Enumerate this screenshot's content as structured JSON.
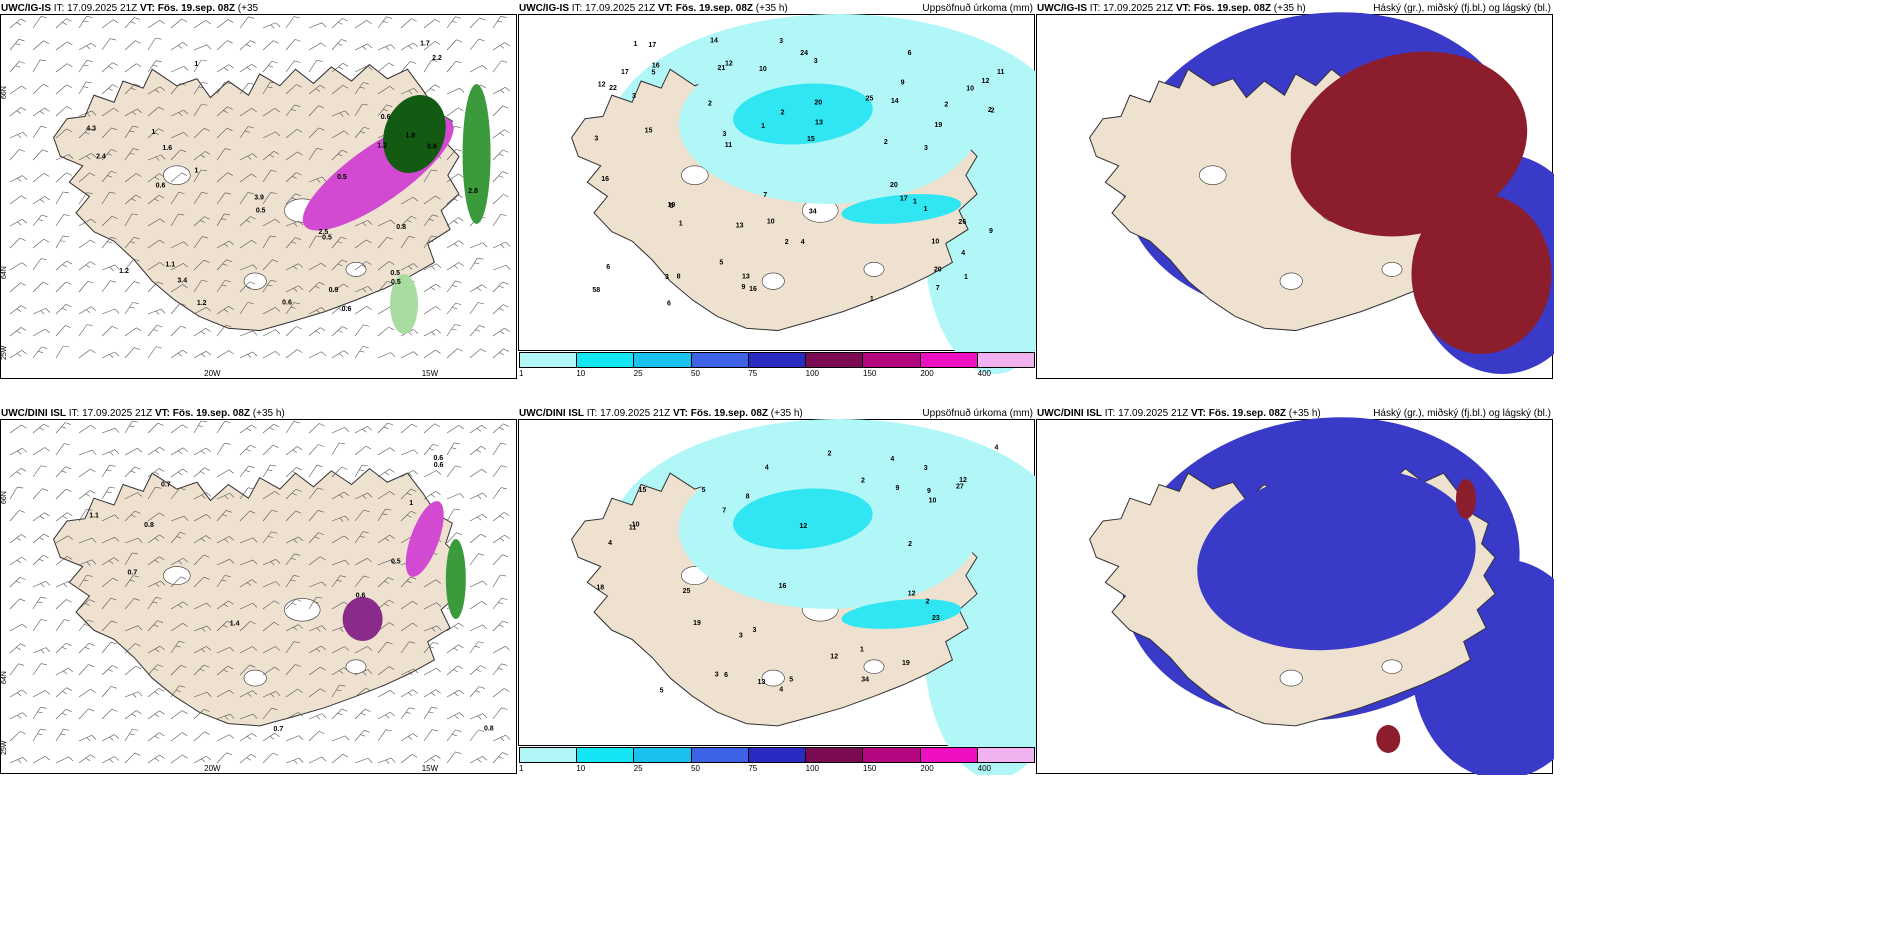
{
  "panels": [
    {
      "id": "p1",
      "header_model": "UWC/IG-IS",
      "header_it": " IT: 17.09.2025 21Z ",
      "header_vt": "VT: Fös. 19.sep. 08Z",
      "header_lead": " (+35",
      "header_wrap": "h)",
      "right_title": "",
      "type": "wind",
      "lon_labels": [
        "20W",
        "15W"
      ],
      "lat_labels": [
        "66N",
        "64N",
        "25W"
      ],
      "values": [
        "0.6",
        "1",
        "1.1",
        "1",
        "1.8",
        "0.9",
        "2.8",
        "1",
        "0.5",
        "3.4",
        "1.2",
        "4.3",
        "3.9",
        "2.5",
        "1.2",
        "1.7",
        "2.4",
        "2.2",
        "0.8",
        "0.8",
        "0.5",
        "0.5",
        "1.2",
        "0.5",
        "0.5",
        "0.6",
        "0.6",
        "1.6",
        "0.6"
      ]
    },
    {
      "id": "p2",
      "header_model": "UWC/IG-IS",
      "header_it": " IT: 17.09.2025 21Z ",
      "header_vt": "VT: Fös. 19.sep. 08Z",
      "header_lead": " (+35 h)",
      "right_title": "Uppsöfnuð úrkoma (mm)",
      "type": "precip",
      "values": [
        "12",
        "10",
        "5",
        "6",
        "3",
        "3",
        "2",
        "5",
        "11",
        "1",
        "13",
        "2",
        "22",
        "21",
        "20",
        "20",
        "13",
        "10",
        "12",
        "7",
        "34",
        "19",
        "17",
        "16",
        "14",
        "10",
        "9",
        "17",
        "8",
        "58",
        "15",
        "6",
        "16",
        "9",
        "7",
        "24",
        "16",
        "4",
        "10",
        "15",
        "9",
        "19",
        "13",
        "11",
        "3",
        "12",
        "20",
        "14",
        "25",
        "26",
        "17",
        "6",
        "5",
        "1",
        "1",
        "2",
        "2",
        "1",
        "3",
        "3",
        "2",
        "4",
        "2",
        "3",
        "1",
        "3",
        "2",
        "1",
        "1"
      ],
      "legend": [
        "1",
        "10",
        "25",
        "50",
        "75",
        "100",
        "150",
        "200",
        "400"
      ]
    },
    {
      "id": "p3",
      "header_model": "UWC/IG-IS",
      "header_it": " IT: 17.09.2025 21Z ",
      "header_vt": "VT: Fös. 19.sep. 08Z",
      "header_lead": " (+35 h)",
      "right_title": "Háský (gr.), miðský (fj.bl.) og lágský (bl.)",
      "type": "cloud"
    },
    {
      "id": "p4",
      "header_model": "UWC/DINI ISL",
      "header_it": " IT: 17.09.2025 21Z ",
      "header_vt": "VT: Fös. 19.sep. 08Z",
      "header_lead": " (+35 h)",
      "right_title": "",
      "type": "wind",
      "lon_labels": [
        "20W",
        "15W"
      ],
      "lat_labels": [
        "66N",
        "64N",
        "25W"
      ],
      "values": [
        "0.6",
        "0.6",
        "0.7",
        "0.8",
        "0.5",
        "1.4",
        "0.7",
        "0.8",
        "1.1",
        "0.7",
        "0.6",
        "1"
      ]
    },
    {
      "id": "p5",
      "header_model": "UWC/DINI ISL",
      "header_it": " IT: 17.09.2025 21Z ",
      "header_vt": "VT: Fös. 19.sep. 08Z",
      "header_lead": " (+35 h)",
      "right_title": "Uppsöfnuð úrkoma (mm)",
      "type": "precip",
      "values": [
        "3",
        "3",
        "2",
        "5",
        "4",
        "3",
        "4",
        "12",
        "12",
        "11",
        "15",
        "9",
        "27",
        "16",
        "10",
        "34",
        "25",
        "18",
        "19",
        "12",
        "10",
        "12",
        "13",
        "23",
        "19",
        "5",
        "8",
        "7",
        "6",
        "9",
        "4",
        "5",
        "4",
        "2",
        "2",
        "1",
        "2",
        "3",
        "4"
      ],
      "legend": [
        "1",
        "10",
        "25",
        "50",
        "75",
        "100",
        "150",
        "200",
        "400"
      ]
    },
    {
      "id": "p6",
      "header_model": "UWC/DINI ISL",
      "header_it": " IT: 17.09.2025 21Z ",
      "header_vt": "VT: Fös. 19.sep. 08Z",
      "header_lead": " (+35 h)",
      "right_title": "Háský (gr.), miðský (fj.bl.) og lágský (bl.)",
      "type": "cloud"
    }
  ],
  "colors": {
    "land": "#efe1cf",
    "coast": "#333333",
    "precip_light": "#b2f7f7",
    "precip_mid": "#2fe6f2",
    "wind_green_light": "#a8dca0",
    "wind_green": "#3b9a3b",
    "wind_green_dark": "#135b13",
    "wind_magenta": "#d24ad2",
    "wind_magenta_dark": "#8a2a8a",
    "cloud_low": "#3a3ac8",
    "cloud_mid": "#6c5ab8",
    "cloud_high": "#8b1d2c",
    "legend": [
      "#b2f7f7",
      "#13e5f2",
      "#1ac1ef",
      "#3e62e6",
      "#2a2ac2",
      "#7a0a52",
      "#b4067f",
      "#ee0fc2",
      "#f1b3ef"
    ]
  }
}
